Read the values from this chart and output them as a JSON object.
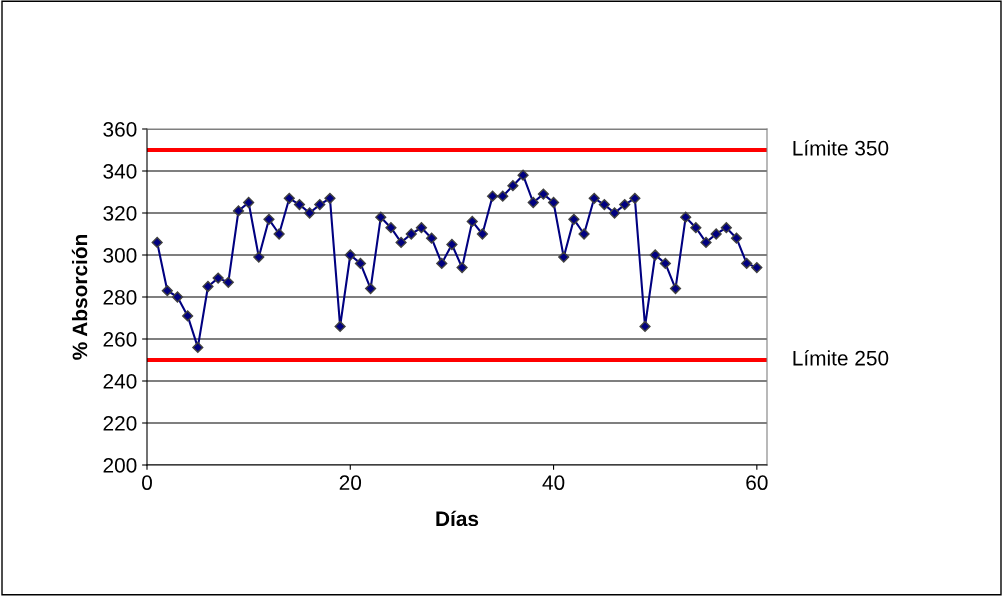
{
  "chart_data": {
    "type": "line",
    "xlabel": "Días",
    "ylabel": "% Absorción",
    "x": [
      1,
      2,
      3,
      4,
      5,
      6,
      7,
      8,
      9,
      10,
      11,
      12,
      13,
      14,
      15,
      16,
      17,
      18,
      19,
      20,
      21,
      22,
      23,
      24,
      25,
      26,
      27,
      28,
      29,
      30,
      31,
      32,
      33,
      34,
      35,
      36,
      37,
      38,
      39,
      40,
      41,
      42,
      43,
      44,
      45,
      46,
      47,
      48,
      49,
      50,
      51,
      52,
      53,
      54,
      55,
      56,
      57,
      58,
      59,
      60
    ],
    "series": [
      {
        "color": "#000080",
        "values": [
          306,
          283,
          280,
          271,
          256,
          285,
          289,
          287,
          321,
          325,
          299,
          317,
          310,
          327,
          324,
          320,
          324,
          327,
          266,
          300,
          296,
          284,
          318,
          313,
          306,
          310,
          313,
          308,
          296,
          305,
          294,
          316,
          310,
          328,
          328,
          333,
          338,
          325,
          329,
          325,
          299,
          317,
          310,
          327,
          324,
          320,
          324,
          327,
          266,
          300,
          296,
          284,
          318,
          313,
          306,
          310,
          313,
          308,
          296,
          294
        ]
      }
    ],
    "marker": "diamond",
    "line_style": "solid",
    "xlim": [
      0,
      61
    ],
    "xticks": [
      0,
      20,
      40,
      60
    ],
    "ylim": [
      200,
      360
    ],
    "yticks": [
      200,
      220,
      240,
      260,
      280,
      300,
      320,
      340,
      360
    ],
    "grid": "y",
    "legend": false,
    "ref_lines": [
      {
        "axis": "y",
        "value": 350,
        "label": "Límite 350",
        "color": "#ff0000"
      },
      {
        "axis": "y",
        "value": 250,
        "label": "Límite 250",
        "color": "#ff0000"
      }
    ]
  }
}
